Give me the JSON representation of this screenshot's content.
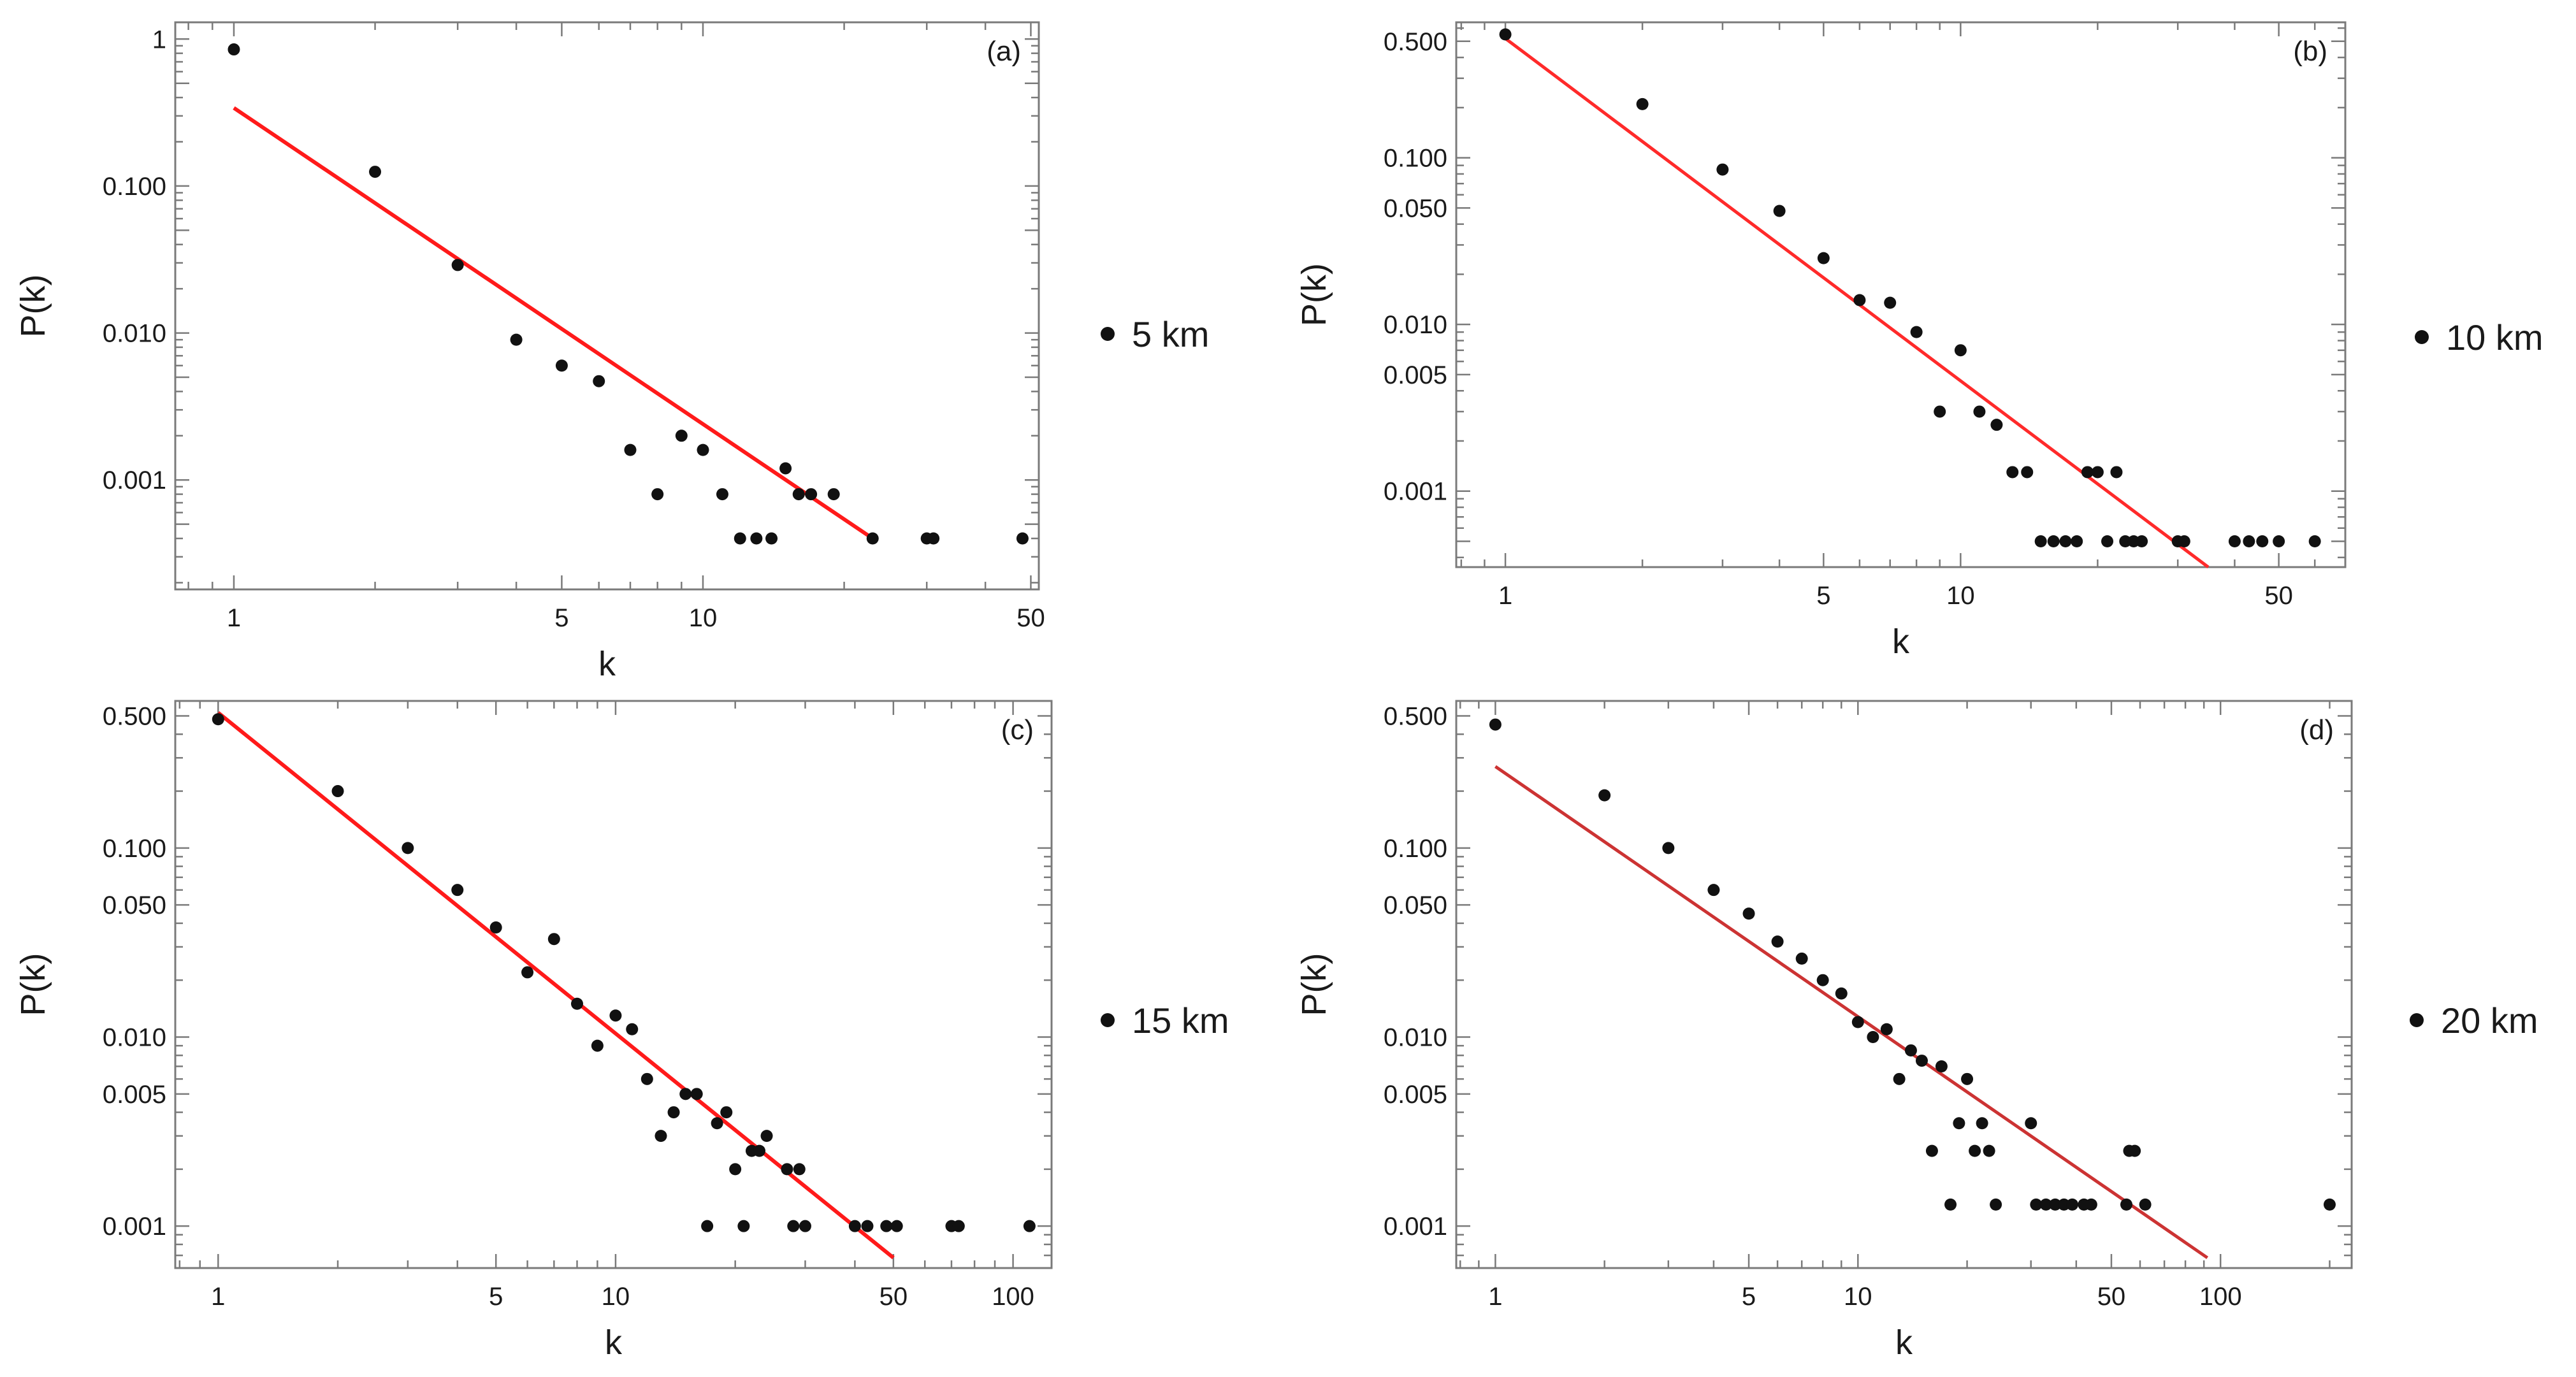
{
  "chart_data": [
    {
      "type": "scatter",
      "panel_label": "(a)",
      "xlabel": "k",
      "ylabel": "P(k)",
      "x_scale": "log",
      "y_scale": "log",
      "xlim": [
        0.75,
        52
      ],
      "ylim": [
        0.00018,
        1.3
      ],
      "x_ticks": [
        {
          "v": 1,
          "label": "1"
        },
        {
          "v": 5,
          "label": "5"
        },
        {
          "v": 10,
          "label": "10"
        },
        {
          "v": 50,
          "label": "50"
        }
      ],
      "y_ticks": [
        {
          "v": 1,
          "label": "1"
        },
        {
          "v": 0.1,
          "label": "0.100"
        },
        {
          "v": 0.01,
          "label": "0.010"
        },
        {
          "v": 0.001,
          "label": "0.001"
        }
      ],
      "legend": {
        "label": "5 km",
        "position": "right"
      },
      "series": [
        {
          "name": "5 km",
          "x": [
            1,
            2,
            3,
            4,
            5,
            6,
            7,
            8,
            9,
            10,
            11,
            12,
            13,
            14,
            15,
            16,
            17,
            19,
            23,
            30,
            31,
            48
          ],
          "y": [
            0.85,
            0.125,
            0.029,
            0.009,
            0.006,
            0.0047,
            0.0016,
            0.0008,
            0.002,
            0.0016,
            0.0008,
            0.0004,
            0.0004,
            0.0004,
            0.0012,
            0.0008,
            0.0008,
            0.0008,
            0.0004,
            0.0004,
            0.0004,
            0.0004
          ]
        }
      ],
      "fit_line": {
        "x": [
          1,
          23
        ],
        "y": [
          0.34,
          0.0004
        ]
      }
    },
    {
      "type": "scatter",
      "panel_label": "(b)",
      "xlabel": "k",
      "ylabel": "P(k)",
      "x_scale": "log",
      "y_scale": "log",
      "xlim": [
        0.78,
        70
      ],
      "ylim": [
        0.00035,
        0.65
      ],
      "x_ticks": [
        {
          "v": 1,
          "label": "1"
        },
        {
          "v": 5,
          "label": "5"
        },
        {
          "v": 10,
          "label": "10"
        },
        {
          "v": 50,
          "label": "50"
        }
      ],
      "y_ticks": [
        {
          "v": 0.5,
          "label": "0.500"
        },
        {
          "v": 0.1,
          "label": "0.100"
        },
        {
          "v": 0.05,
          "label": "0.050"
        },
        {
          "v": 0.01,
          "label": "0.010"
        },
        {
          "v": 0.005,
          "label": "0.005"
        },
        {
          "v": 0.001,
          "label": "0.001"
        }
      ],
      "legend": {
        "label": "10 km",
        "position": "right"
      },
      "series": [
        {
          "name": "10 km",
          "x": [
            1,
            2,
            3,
            4,
            5,
            6,
            7,
            8,
            9,
            10,
            11,
            12,
            13,
            14,
            15,
            16,
            17,
            18,
            19,
            20,
            21,
            22,
            23,
            24,
            25,
            30,
            31,
            40,
            43,
            46,
            50,
            60
          ],
          "y": [
            0.55,
            0.21,
            0.085,
            0.048,
            0.025,
            0.014,
            0.0135,
            0.009,
            0.003,
            0.007,
            0.003,
            0.0025,
            0.0013,
            0.0013,
            0.0005,
            0.0005,
            0.0005,
            0.0005,
            0.0013,
            0.0013,
            0.0005,
            0.0013,
            0.0005,
            0.0005,
            0.0005,
            0.0005,
            0.0005,
            0.0005,
            0.0005,
            0.0005,
            0.0005,
            0.0005
          ]
        }
      ],
      "fit_line": {
        "x": [
          1,
          35
        ],
        "y": [
          0.52,
          0.00035
        ]
      }
    },
    {
      "type": "scatter",
      "panel_label": "(c)",
      "xlabel": "k",
      "ylabel": "P(k)",
      "x_scale": "log",
      "y_scale": "log",
      "xlim": [
        0.78,
        125
      ],
      "ylim": [
        0.0006,
        0.6
      ],
      "x_ticks": [
        {
          "v": 1,
          "label": "1"
        },
        {
          "v": 5,
          "label": "5"
        },
        {
          "v": 10,
          "label": "10"
        },
        {
          "v": 50,
          "label": "50"
        },
        {
          "v": 100,
          "label": "100"
        }
      ],
      "y_ticks": [
        {
          "v": 0.5,
          "label": "0.500"
        },
        {
          "v": 0.1,
          "label": "0.100"
        },
        {
          "v": 0.05,
          "label": "0.050"
        },
        {
          "v": 0.01,
          "label": "0.010"
        },
        {
          "v": 0.005,
          "label": "0.005"
        },
        {
          "v": 0.001,
          "label": "0.001"
        }
      ],
      "legend": {
        "label": "15 km",
        "position": "right"
      },
      "series": [
        {
          "name": "15 km",
          "x": [
            1,
            2,
            3,
            4,
            5,
            6,
            7,
            8,
            9,
            10,
            11,
            12,
            13,
            14,
            15,
            16,
            17,
            18,
            19,
            20,
            21,
            22,
            23,
            24,
            27,
            28,
            29,
            30,
            40,
            43,
            48,
            51,
            70,
            73,
            110
          ],
          "y": [
            0.48,
            0.2,
            0.1,
            0.06,
            0.038,
            0.022,
            0.033,
            0.015,
            0.009,
            0.013,
            0.011,
            0.006,
            0.003,
            0.004,
            0.005,
            0.005,
            0.001,
            0.0035,
            0.004,
            0.002,
            0.001,
            0.0025,
            0.0025,
            0.003,
            0.002,
            0.001,
            0.002,
            0.001,
            0.001,
            0.001,
            0.001,
            0.001,
            0.001,
            0.001,
            0.001
          ]
        }
      ],
      "fit_line": {
        "x": [
          1,
          50
        ],
        "y": [
          0.52,
          0.00068
        ]
      }
    },
    {
      "type": "scatter",
      "panel_label": "(d)",
      "xlabel": "k",
      "ylabel": "P(k)",
      "x_scale": "log",
      "y_scale": "log",
      "xlim": [
        0.78,
        230
      ],
      "ylim": [
        0.0006,
        0.6
      ],
      "x_ticks": [
        {
          "v": 1,
          "label": "1"
        },
        {
          "v": 5,
          "label": "5"
        },
        {
          "v": 10,
          "label": "10"
        },
        {
          "v": 50,
          "label": "50"
        },
        {
          "v": 100,
          "label": "100"
        }
      ],
      "y_ticks": [
        {
          "v": 0.5,
          "label": "0.500"
        },
        {
          "v": 0.1,
          "label": "0.100"
        },
        {
          "v": 0.05,
          "label": "0.050"
        },
        {
          "v": 0.01,
          "label": "0.010"
        },
        {
          "v": 0.005,
          "label": "0.005"
        },
        {
          "v": 0.001,
          "label": "0.001"
        }
      ],
      "legend": {
        "label": "20 km",
        "position": "right"
      },
      "series": [
        {
          "name": "20 km",
          "x": [
            1,
            2,
            3,
            4,
            5,
            6,
            7,
            8,
            9,
            10,
            11,
            12,
            13,
            14,
            15,
            16,
            17,
            18,
            19,
            20,
            21,
            22,
            23,
            24,
            30,
            31,
            33,
            35,
            37,
            39,
            42,
            44,
            55,
            56,
            58,
            62,
            200
          ],
          "y": [
            0.45,
            0.19,
            0.1,
            0.06,
            0.045,
            0.032,
            0.026,
            0.02,
            0.017,
            0.012,
            0.01,
            0.011,
            0.006,
            0.0085,
            0.0075,
            0.0025,
            0.007,
            0.0013,
            0.0035,
            0.006,
            0.0025,
            0.0035,
            0.0025,
            0.0013,
            0.0035,
            0.0013,
            0.0013,
            0.0013,
            0.0013,
            0.0013,
            0.0013,
            0.0013,
            0.0013,
            0.0025,
            0.0025,
            0.0013,
            0.0013
          ]
        }
      ],
      "fit_line": {
        "x": [
          1,
          92
        ],
        "y": [
          0.27,
          0.00068
        ]
      }
    }
  ],
  "colors": {
    "points": "#111111",
    "fit_line_ac": "#ff1a1a",
    "fit_line_b": "#ff2a2a",
    "fit_line_d": "#cc3333"
  }
}
